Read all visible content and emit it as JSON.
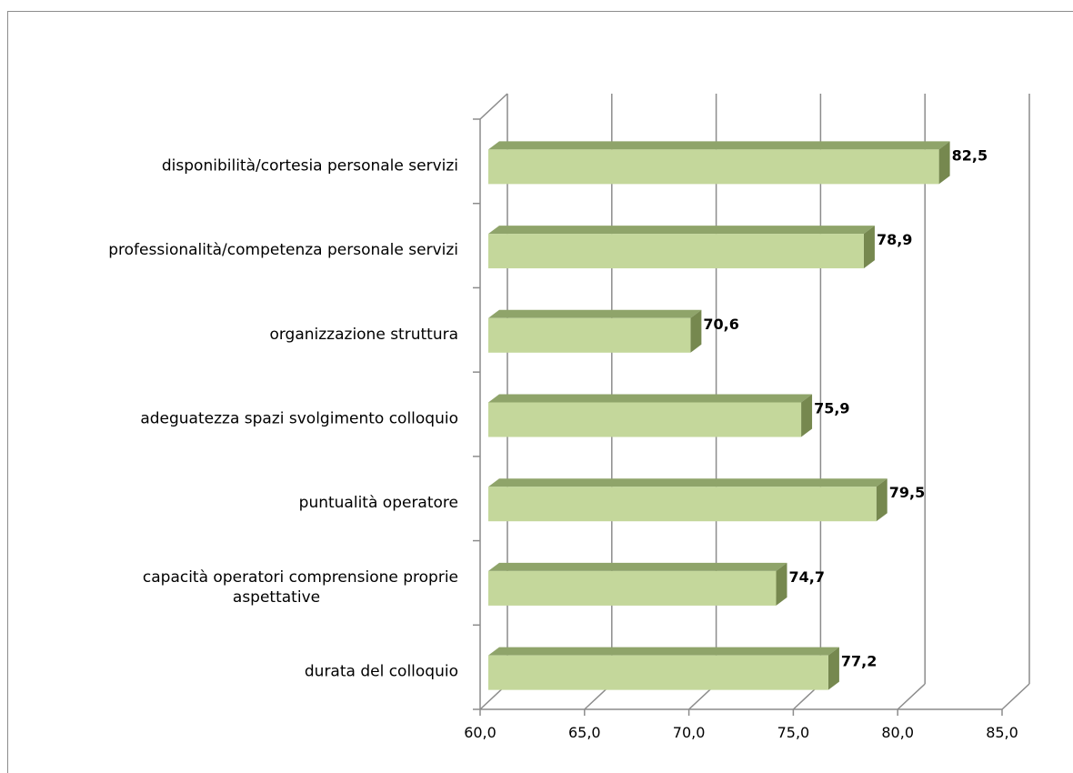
{
  "chart_data": {
    "type": "bar",
    "orientation": "horizontal",
    "style": "3d",
    "categories": [
      [
        "disponibilità/cortesia personale servizi"
      ],
      [
        "professionalità/competenza personale servizi"
      ],
      [
        "organizzazione struttura"
      ],
      [
        "adeguatezza spazi svolgimento colloquio"
      ],
      [
        "puntualità operatore"
      ],
      [
        "capacità operatori comprensione proprie",
        "aspettative"
      ],
      [
        "durata del colloquio"
      ]
    ],
    "values": [
      82.5,
      78.9,
      70.6,
      75.9,
      79.5,
      74.7,
      77.2
    ],
    "data_labels": [
      "82,5",
      "78,9",
      "70,6",
      "75,9",
      "79,5",
      "74,7",
      "77,2"
    ],
    "xlim": [
      60,
      85
    ],
    "x_ticks": [
      "60,0",
      "65,0",
      "70,0",
      "75,0",
      "80,0",
      "85,0"
    ],
    "grid": true,
    "legend": "none",
    "colors": {
      "bar_front": "#c4d79b",
      "bar_top": "#8fa46a",
      "bar_side": "#76884f",
      "gridline": "#8c8c8c"
    }
  }
}
